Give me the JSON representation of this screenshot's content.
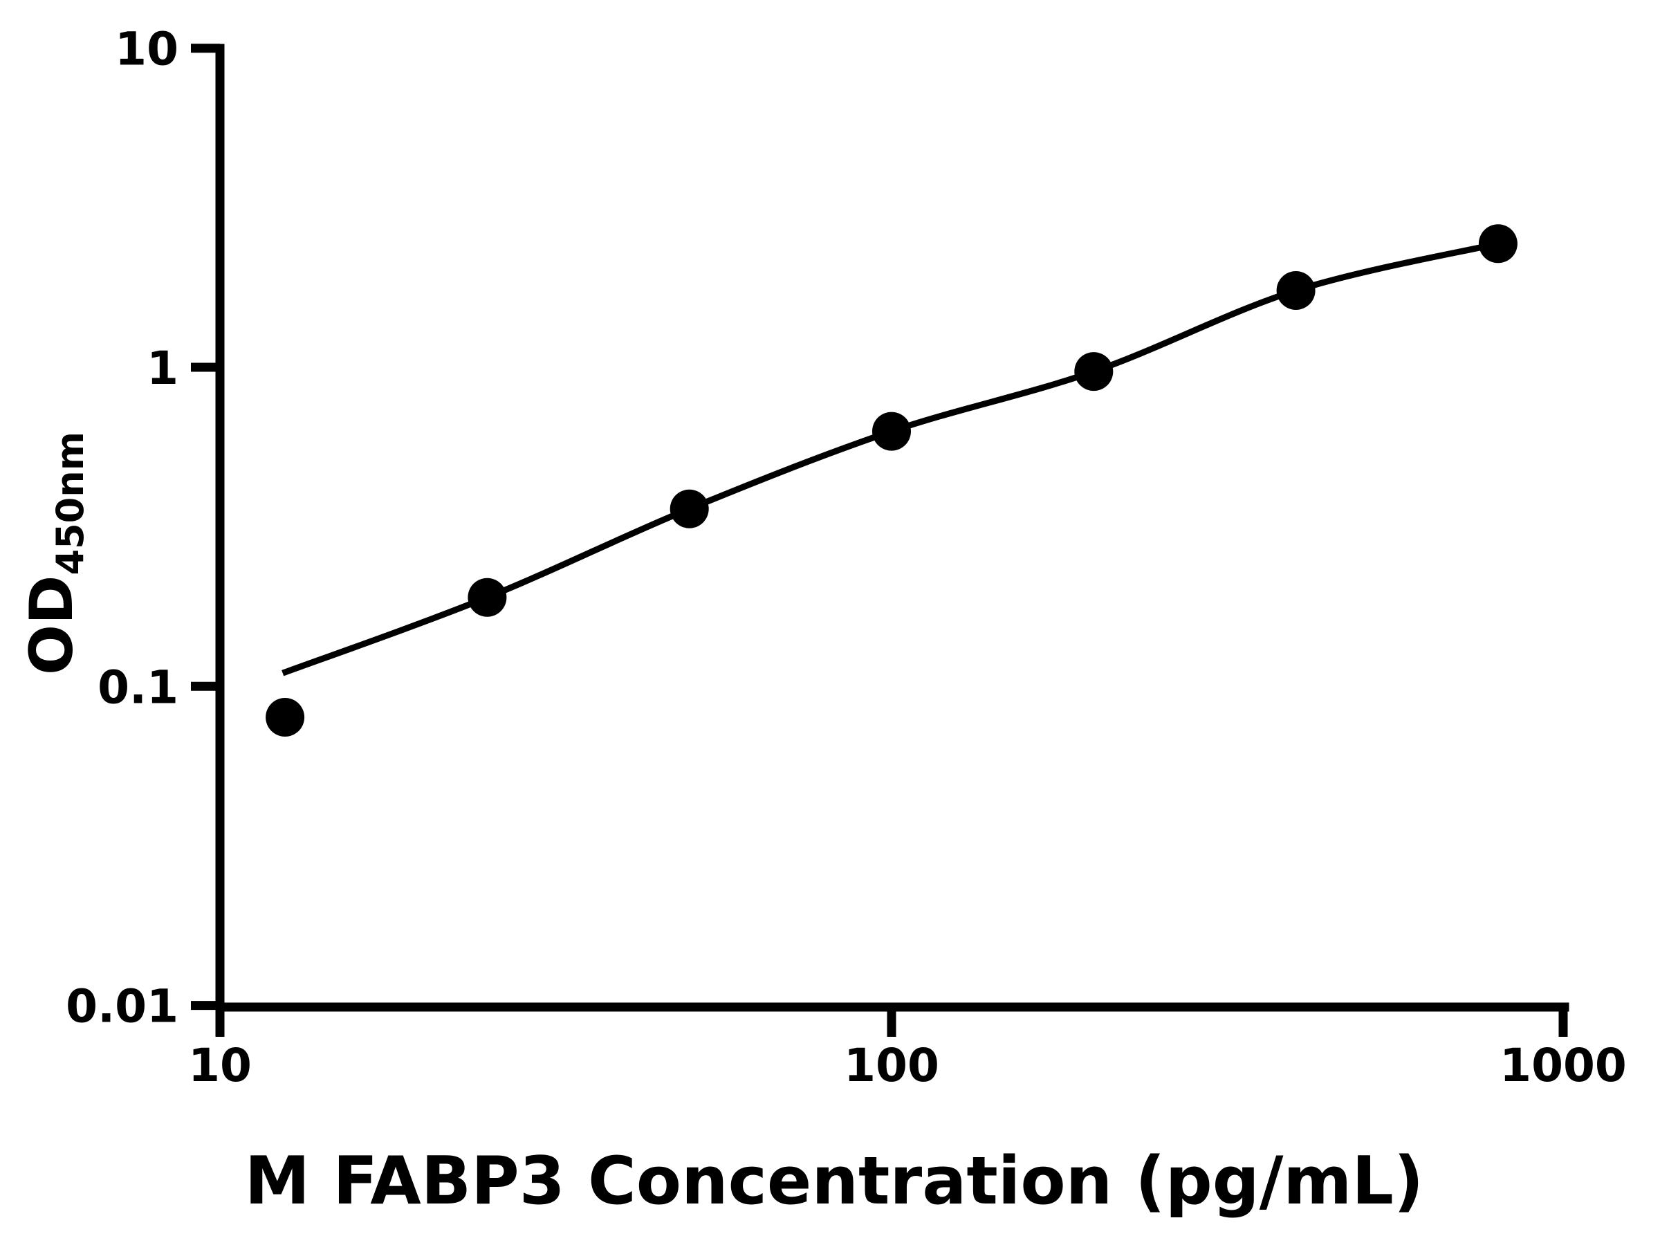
{
  "figure": {
    "background_color": "#ffffff",
    "ink_color": "#000000"
  },
  "chart_data": {
    "type": "scatter",
    "title": "",
    "xlabel": "M FABP3 Concentration (pg/mL)",
    "ylabel_main": "OD",
    "ylabel_sub": "450nm",
    "x_scale": "log",
    "y_scale": "log",
    "xlim": [
      10,
      1000
    ],
    "ylim": [
      0.01,
      10
    ],
    "grid": false,
    "legend_position": "none",
    "x_ticks": {
      "values": [
        10,
        100,
        1000
      ],
      "labels": [
        "10",
        "100",
        "1000"
      ]
    },
    "y_ticks": {
      "values": [
        10,
        1,
        0.1,
        0.01
      ],
      "labels": [
        "10",
        "1",
        "0.1",
        "0.01"
      ]
    },
    "series": [
      {
        "name": "standard-points",
        "type": "scatter",
        "marker": "filled-circle",
        "color": "#000000",
        "x": [
          12.5,
          25,
          50,
          100,
          200,
          400,
          800
        ],
        "y": [
          0.08,
          0.19,
          0.36,
          0.63,
          0.97,
          1.74,
          2.44
        ]
      },
      {
        "name": "fit-curve",
        "type": "line",
        "color": "#000000",
        "x": [
          12.4,
          25,
          50,
          100,
          200,
          400,
          800
        ],
        "y": [
          0.11,
          0.19,
          0.36,
          0.63,
          0.97,
          1.74,
          2.44
        ]
      }
    ]
  }
}
